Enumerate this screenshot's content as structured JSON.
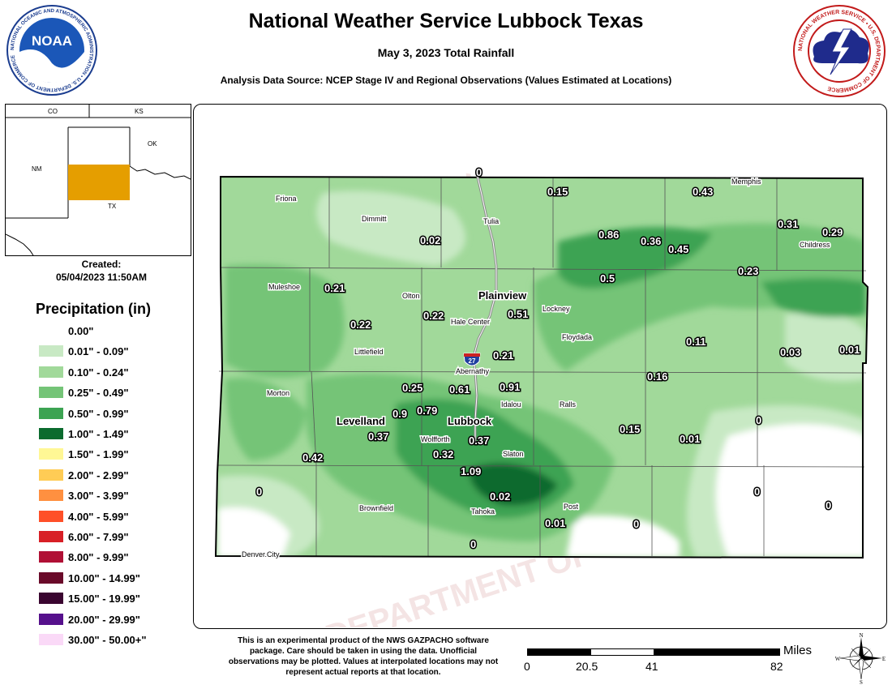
{
  "header": {
    "title": "National Weather Service Lubbock Texas",
    "subtitle": "May 3, 2023 Total Rainfall",
    "source": "Analysis Data Source: NCEP Stage IV and Regional Observations (Values Estimated at Locations)"
  },
  "logos": {
    "noaa": {
      "text": "NOAA",
      "ring_text": "NATIONAL OCEANIC AND ATMOSPHERIC ADMINISTRATION • U.S. DEPARTMENT OF COMMERCE"
    },
    "nws": {
      "ring_text": "NATIONAL WEATHER SERVICE • U.S. DEPARTMENT OF COMMERCE"
    }
  },
  "inset": {
    "labels": {
      "co": "CO",
      "ks": "KS",
      "nm": "NM",
      "ok": "OK",
      "tx": "TX"
    },
    "highlight_color": "#E59E00"
  },
  "created": {
    "label": "Created:",
    "value": "05/04/2023 11:50AM"
  },
  "legend": {
    "title": "Precipitation (in)",
    "items": [
      {
        "label": "0.00\"",
        "color": "#FFFFFF"
      },
      {
        "label": "0.01\" - 0.09\"",
        "color": "#C8E9C4"
      },
      {
        "label": "0.10\" - 0.24\"",
        "color": "#A1D99A"
      },
      {
        "label": "0.25\" - 0.49\"",
        "color": "#74C477"
      },
      {
        "label": "0.50\" - 0.99\"",
        "color": "#3CA352"
      },
      {
        "label": "1.00\" - 1.49\"",
        "color": "#0B6B2E"
      },
      {
        "label": "1.50\" - 1.99\"",
        "color": "#FFF795"
      },
      {
        "label": "2.00\" - 2.99\"",
        "color": "#FFCC55"
      },
      {
        "label": "3.00\" - 3.99\"",
        "color": "#FF9040"
      },
      {
        "label": "4.00\" - 5.99\"",
        "color": "#FF5028"
      },
      {
        "label": "6.00\" - 7.99\"",
        "color": "#D81F26"
      },
      {
        "label": "8.00\" - 9.99\"",
        "color": "#B01035"
      },
      {
        "label": "10.00\" - 14.99\"",
        "color": "#6A0A2A"
      },
      {
        "label": "15.00\" - 19.99\"",
        "color": "#3A0530"
      },
      {
        "label": "20.00\" - 29.99\"",
        "color": "#56108C"
      },
      {
        "label": "30.00\" - 50.00+\"",
        "color": "#FAD9F7"
      }
    ]
  },
  "map": {
    "watermark": "WEATHER ... DEPARTMENT OF COMMERCE",
    "towns": [
      "Friona",
      "Dimmitt",
      "Tulia",
      "Memphis",
      "Childress",
      "Muleshoe",
      "Olton",
      "Plainview",
      "Lockney",
      "Hale Center",
      "Floydada",
      "Littlefield",
      "Abernathy",
      "Morton",
      "Levelland",
      "Idalou",
      "Ralls",
      "Lubbock",
      "Wolfforth",
      "Slaton",
      "Brownfield",
      "Tahoka",
      "Post",
      "Denver.City"
    ],
    "highway_shield": "27",
    "rainfall_values": [
      "0",
      "0.15",
      "0.43",
      "0.31",
      "0.29",
      "0.02",
      "0.86",
      "0.36",
      "0.45",
      "0.23",
      "0.5",
      "0.21",
      "0.22",
      "0.51",
      "0.22",
      "0.11",
      "0.03",
      "0.01",
      "0.21",
      "0.16",
      "0.25",
      "0.61",
      "0.91",
      "0.9",
      "0.79",
      "0.37",
      "0.37",
      "0.15",
      "0.01",
      "0",
      "0.42",
      "0.32",
      "1.09",
      "0",
      "0.02",
      "0",
      "0.01",
      "0",
      "0",
      "0"
    ]
  },
  "disclaimer": "This is an experimental product of the NWS GAZPACHO software package. Care should be taken in using the data. Unofficial observations may be plotted. Values at interpolated locations may not represent actual reports at that location.",
  "scale": {
    "unit": "Miles",
    "ticks": [
      "0",
      "20.5",
      "41",
      "82"
    ]
  },
  "compass": {
    "n": "N",
    "s": "S",
    "e": "E",
    "w": "W"
  }
}
